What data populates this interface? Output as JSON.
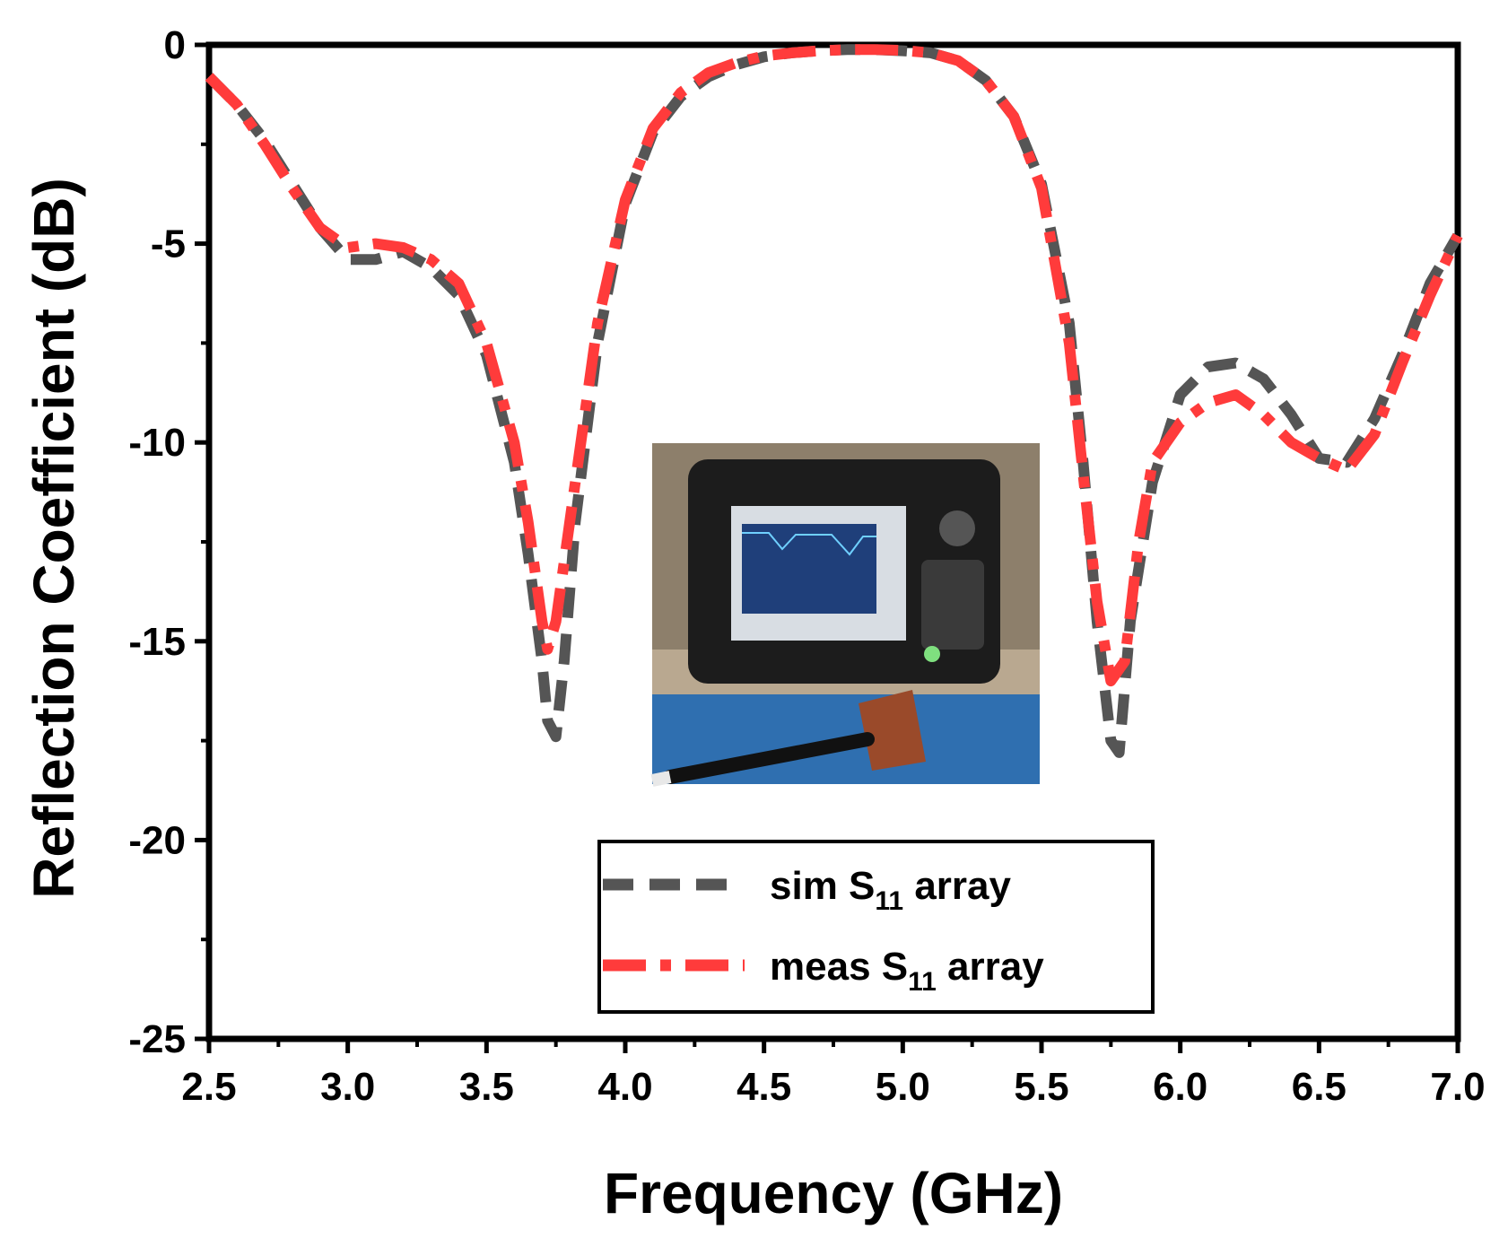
{
  "chart_data": {
    "type": "line",
    "title": "",
    "xlabel": "Frequency (GHz)",
    "ylabel": "Reflection Coefficient (dB)",
    "xlim": [
      2.5,
      7.0
    ],
    "ylim": [
      -25,
      0
    ],
    "xticks": [
      "2.5",
      "3.0",
      "3.5",
      "4.0",
      "4.5",
      "5.0",
      "5.5",
      "6.0",
      "6.5",
      "7.0"
    ],
    "yticks": [
      "0",
      "-5",
      "-10",
      "-15",
      "-20",
      "-25"
    ],
    "grid": false,
    "legend": {
      "position": "bottom-center",
      "entries": [
        {
          "prefix": "sim S",
          "sub": "11",
          "suffix": " array"
        },
        {
          "prefix": "meas S",
          "sub": "11",
          "suffix": " array"
        }
      ]
    },
    "inset": {
      "description": "photo",
      "colors": {
        "bench": "#b9a890",
        "mat": "#2f6fb0",
        "device": "#1c1c1c",
        "screen": "#d8dde3",
        "board": "#9a4a2a"
      }
    },
    "series": [
      {
        "name": "sim S11 array",
        "color": "#555555",
        "style": "dash",
        "x": [
          2.5,
          2.6,
          2.7,
          2.8,
          2.9,
          3.0,
          3.1,
          3.2,
          3.3,
          3.4,
          3.5,
          3.6,
          3.65,
          3.7,
          3.72,
          3.75,
          3.78,
          3.82,
          3.9,
          4.0,
          4.1,
          4.2,
          4.3,
          4.4,
          4.5,
          4.6,
          4.7,
          4.8,
          4.9,
          5.0,
          5.1,
          5.2,
          5.3,
          5.4,
          5.5,
          5.6,
          5.65,
          5.7,
          5.75,
          5.78,
          5.82,
          5.9,
          6.0,
          6.1,
          6.2,
          6.3,
          6.4,
          6.5,
          6.6,
          6.7,
          6.8,
          6.9,
          7.0
        ],
        "y": [
          -0.8,
          -1.5,
          -2.4,
          -3.5,
          -4.6,
          -5.4,
          -5.4,
          -5.2,
          -5.6,
          -6.3,
          -7.8,
          -10.5,
          -12.8,
          -15.5,
          -17.0,
          -17.4,
          -15.5,
          -12.0,
          -7.5,
          -4.0,
          -2.2,
          -1.3,
          -0.8,
          -0.5,
          -0.3,
          -0.2,
          -0.15,
          -0.12,
          -0.12,
          -0.15,
          -0.2,
          -0.4,
          -0.9,
          -1.8,
          -3.5,
          -7.0,
          -10.5,
          -14.5,
          -17.5,
          -17.8,
          -14.5,
          -11.0,
          -8.8,
          -8.1,
          -8.0,
          -8.4,
          -9.3,
          -10.4,
          -10.5,
          -9.4,
          -7.8,
          -6.0,
          -4.8
        ]
      },
      {
        "name": "meas S11 array",
        "color": "#ff3b3b",
        "style": "dashdot",
        "x": [
          2.5,
          2.6,
          2.7,
          2.8,
          2.9,
          3.0,
          3.1,
          3.2,
          3.3,
          3.4,
          3.5,
          3.6,
          3.65,
          3.7,
          3.72,
          3.75,
          3.8,
          3.85,
          3.9,
          4.0,
          4.1,
          4.2,
          4.3,
          4.4,
          4.5,
          4.6,
          4.7,
          4.8,
          4.9,
          5.0,
          5.1,
          5.2,
          5.3,
          5.4,
          5.5,
          5.6,
          5.65,
          5.7,
          5.75,
          5.8,
          5.85,
          5.9,
          6.0,
          6.1,
          6.2,
          6.3,
          6.4,
          6.5,
          6.6,
          6.7,
          6.8,
          6.9,
          7.0
        ],
        "y": [
          -0.8,
          -1.5,
          -2.5,
          -3.6,
          -4.6,
          -5.1,
          -5.0,
          -5.1,
          -5.4,
          -6.0,
          -7.5,
          -10.0,
          -12.0,
          -14.5,
          -15.2,
          -14.5,
          -12.0,
          -9.5,
          -7.0,
          -3.9,
          -2.1,
          -1.2,
          -0.7,
          -0.45,
          -0.28,
          -0.2,
          -0.15,
          -0.12,
          -0.12,
          -0.14,
          -0.2,
          -0.4,
          -0.9,
          -1.8,
          -3.6,
          -7.5,
          -10.8,
          -14.0,
          -16.0,
          -15.5,
          -12.5,
          -10.5,
          -9.5,
          -9.0,
          -8.8,
          -9.3,
          -10.0,
          -10.4,
          -10.7,
          -9.8,
          -8.0,
          -6.3,
          -4.8
        ]
      }
    ]
  }
}
